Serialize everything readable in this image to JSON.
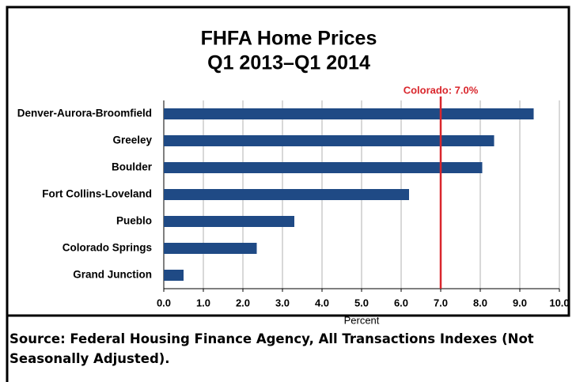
{
  "chart_data": {
    "type": "barh",
    "title": "FHFA Home Prices",
    "subtitle": "Q1 2013–Q1 2014",
    "categories": [
      "Denver-Aurora-Broomfield",
      "Greeley",
      "Boulder",
      "Fort Collins-Loveland",
      "Pueblo",
      "Colorado Springs",
      "Grand Junction"
    ],
    "values": [
      9.35,
      8.35,
      8.05,
      6.2,
      3.3,
      2.35,
      0.5
    ],
    "color": "#1f4a85",
    "xlabel": "Percent",
    "xlim": [
      0,
      10
    ],
    "xticks": [
      {
        "value": 0,
        "label": "0.0"
      },
      {
        "value": 1,
        "label": "1.0"
      },
      {
        "value": 2,
        "label": "2.0"
      },
      {
        "value": 3,
        "label": "3.0"
      },
      {
        "value": 4,
        "label": "4.0"
      },
      {
        "value": 5,
        "label": "5.0"
      },
      {
        "value": 6,
        "label": "6.0"
      },
      {
        "value": 7,
        "label": "7.0"
      },
      {
        "value": 8,
        "label": "8.0"
      },
      {
        "value": 9,
        "label": "9.0"
      },
      {
        "value": 10,
        "label": "10.0"
      }
    ],
    "grid": true,
    "reference": {
      "value": 7.0,
      "label": "Colorado: 7.0%",
      "color": "#d9262c"
    },
    "source": "Source: Federal Housing Finance Agency, All Transactions Indexes (Not Seasonally Adjusted)."
  }
}
